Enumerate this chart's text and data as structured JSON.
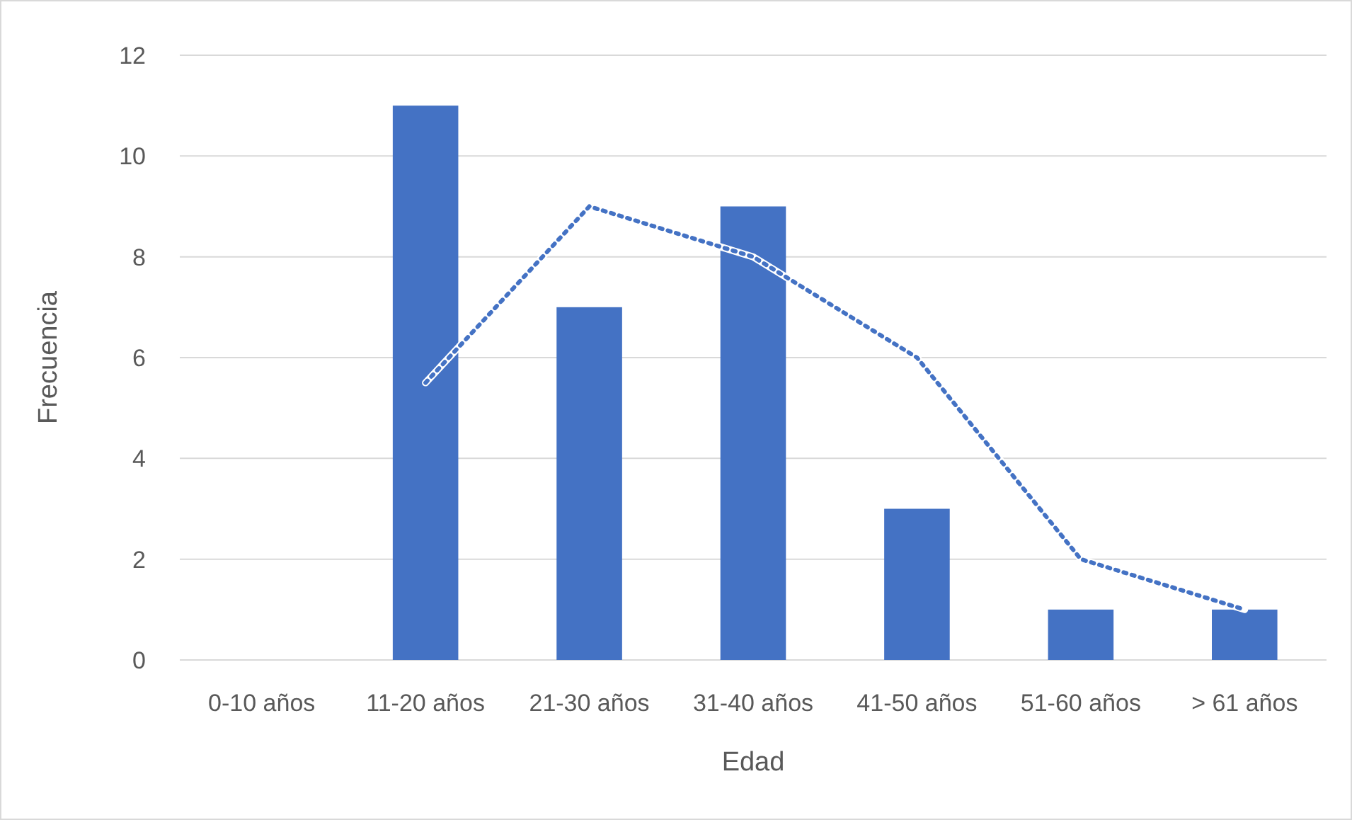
{
  "chart_data": {
    "type": "bar",
    "xlabel": "Edad",
    "ylabel": "Frecuencia",
    "categories": [
      "0-10 años",
      "11-20 años",
      "21-30 años",
      "31-40 años",
      "41-50 años",
      "51-60 años",
      "> 61 años"
    ],
    "series": [
      {
        "color": "#4472c4",
        "values": [
          0,
          11,
          7,
          9,
          3,
          1,
          1
        ]
      },
      {
        "type": "line",
        "color": "#4472c4",
        "line_style": "dotted",
        "marker": "none",
        "values": [
          null,
          5.5,
          9,
          8,
          6,
          2,
          1
        ]
      }
    ],
    "ylim": [
      0,
      12
    ],
    "yticks": [
      0,
      2,
      4,
      6,
      8,
      10,
      12
    ],
    "grid": "y"
  }
}
